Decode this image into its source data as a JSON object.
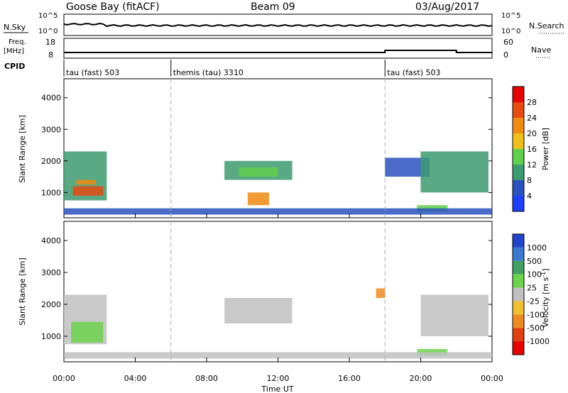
{
  "header": {
    "station": "Goose Bay (fitACF)",
    "beam": "Beam 09",
    "date": "03/Aug/2017"
  },
  "noise_panel": {
    "left_label": "N.Sky",
    "right_label": "N.Search",
    "ticks_top": "10^5",
    "ticks_bottom": "10^0",
    "right_ticks_top": "10^5",
    "right_ticks_bottom": "10^0"
  },
  "freq_panel": {
    "left_label_1": "Freq.",
    "left_label_2": "[MHz]",
    "left_ticks": [
      "18",
      "8"
    ],
    "right_label": "Nave",
    "right_ticks": [
      "60",
      "0"
    ]
  },
  "cpid": {
    "label": "CPID",
    "segments": [
      {
        "start_h": 0,
        "name": "tau (fast) 503"
      },
      {
        "start_h": 6,
        "name": "themis (tau) 3310"
      },
      {
        "start_h": 18,
        "name": "tau (fast) 503"
      }
    ]
  },
  "axes": {
    "xlabel": "Time UT",
    "ylabel": "Slant Range [km]",
    "x_ticks": [
      "00:00",
      "04:00",
      "08:00",
      "12:00",
      "16:00",
      "20:00",
      "00:00"
    ],
    "x_tick_hours": [
      0,
      4,
      8,
      12,
      16,
      20,
      24
    ],
    "y_ticks": [
      "1000",
      "2000",
      "3000",
      "4000"
    ],
    "y_tick_values": [
      1000,
      2000,
      3000,
      4000
    ],
    "ylim": [
      200,
      4600
    ],
    "xlim_hours": [
      0,
      24
    ],
    "mode_change_hours": [
      6,
      18
    ]
  },
  "power_colorbar": {
    "label": "Power [dB]",
    "ticks": [
      "4",
      "8",
      "12",
      "16",
      "20",
      "24",
      "28"
    ],
    "colors": [
      "#1f3fff",
      "#2a52be",
      "#3b9a6e",
      "#5fd04a",
      "#f0c01a",
      "#f08a10",
      "#e84a10",
      "#e60000"
    ]
  },
  "velocity_colorbar": {
    "label": "Velocity [m s",
    "label_sup": "-1",
    "label_end": "]",
    "ticks": [
      "1000",
      "500",
      "100",
      "25",
      "-25",
      "-100",
      "-500",
      "-1000"
    ],
    "colors": [
      "#2244cc",
      "#3a7ad0",
      "#40a060",
      "#6cd24a",
      "#c0c0c0",
      "#f0c030",
      "#f08a20",
      "#e04010",
      "#e60000"
    ]
  },
  "chart_data": {
    "type": "heatmap",
    "title": "Goose Bay (fitACF)",
    "xlabel": "Time UT",
    "ylabel": "Slant Range [km]",
    "xlim_hours": [
      0,
      24
    ],
    "ylim": [
      200,
      4600
    ],
    "power_regions": [
      {
        "t0": 0.0,
        "t1": 2.4,
        "r0": 750,
        "r1": 2300,
        "color": "#3b9a6e"
      },
      {
        "t0": 0.5,
        "t1": 2.2,
        "r0": 900,
        "r1": 1200,
        "color": "#e84a10"
      },
      {
        "t0": 0.7,
        "t1": 1.8,
        "r0": 1250,
        "r1": 1400,
        "color": "#f08a10"
      },
      {
        "t0": 9.0,
        "t1": 12.8,
        "r0": 1400,
        "r1": 2000,
        "color": "#3b9a6e"
      },
      {
        "t0": 9.8,
        "t1": 12.0,
        "r0": 1500,
        "r1": 1800,
        "color": "#5fd04a"
      },
      {
        "t0": 10.3,
        "t1": 11.5,
        "r0": 600,
        "r1": 1000,
        "color": "#f08a10"
      },
      {
        "t0": 18.0,
        "t1": 20.5,
        "r0": 1500,
        "r1": 2100,
        "color": "#2a52be"
      },
      {
        "t0": 20.0,
        "t1": 23.8,
        "r0": 1000,
        "r1": 2300,
        "color": "#3b9a6e"
      },
      {
        "t0": 19.8,
        "t1": 21.5,
        "r0": 400,
        "r1": 600,
        "color": "#5fd04a"
      },
      {
        "t0": 0.0,
        "t1": 24.0,
        "r0": 300,
        "r1": 500,
        "color": "#2a52be"
      }
    ],
    "velocity_regions": [
      {
        "t0": 0.0,
        "t1": 2.4,
        "r0": 750,
        "r1": 2300,
        "color": "#c0c0c0"
      },
      {
        "t0": 0.4,
        "t1": 2.2,
        "r0": 800,
        "r1": 1450,
        "color": "#6cd24a"
      },
      {
        "t0": 9.0,
        "t1": 12.8,
        "r0": 1400,
        "r1": 2200,
        "color": "#c0c0c0"
      },
      {
        "t0": 17.5,
        "t1": 18.0,
        "r0": 2200,
        "r1": 2500,
        "color": "#f08a20"
      },
      {
        "t0": 20.0,
        "t1": 23.8,
        "r0": 1000,
        "r1": 2300,
        "color": "#c0c0c0"
      },
      {
        "t0": 19.8,
        "t1": 21.5,
        "r0": 400,
        "r1": 600,
        "color": "#6cd24a"
      },
      {
        "t0": 0.0,
        "t1": 24.0,
        "r0": 300,
        "r1": 500,
        "color": "#c0c0c0"
      }
    ]
  }
}
